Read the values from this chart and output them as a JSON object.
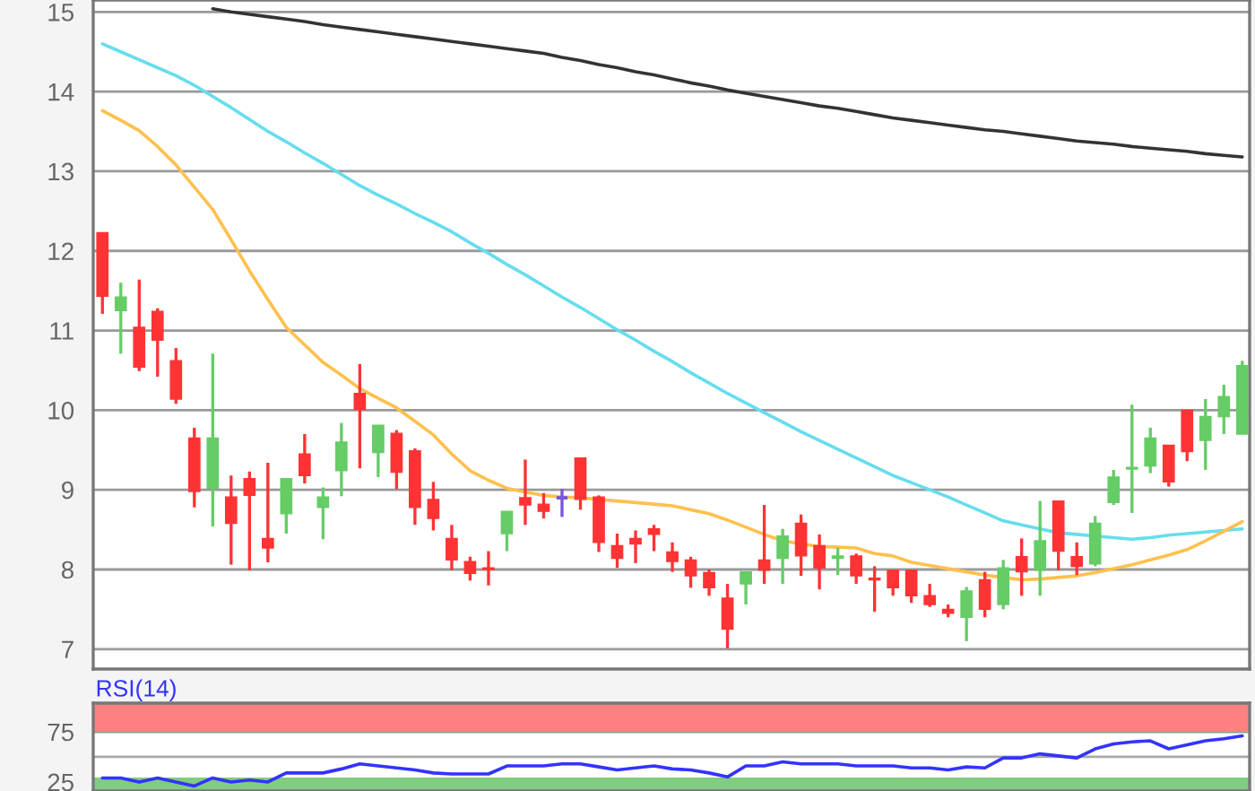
{
  "chart_data": [
    {
      "type": "candlestick",
      "categories": [
        null,
        null,
        null,
        null,
        null,
        null,
        null,
        null,
        null,
        null,
        null,
        null,
        null,
        null,
        null,
        null,
        null,
        null,
        null,
        null,
        null,
        null,
        null,
        null,
        null,
        null,
        null,
        null,
        null,
        null,
        null,
        null,
        null,
        null,
        null,
        null,
        null,
        null,
        null,
        null,
        null,
        null,
        null,
        null,
        null,
        null,
        null,
        null,
        null,
        null,
        null,
        null,
        null,
        null,
        null,
        null,
        null,
        null,
        null,
        null,
        null,
        null,
        null
      ],
      "ohlc": [
        [
          12.23,
          12.23,
          11.21,
          11.43
        ],
        [
          11.25,
          11.6,
          10.71,
          11.42
        ],
        [
          11.04,
          11.64,
          10.49,
          10.54
        ],
        [
          11.24,
          11.28,
          10.42,
          10.88
        ],
        [
          10.62,
          10.78,
          10.08,
          10.14
        ],
        [
          9.65,
          9.78,
          8.78,
          8.98
        ],
        [
          9.02,
          10.71,
          8.54,
          9.65
        ],
        [
          8.91,
          9.18,
          8.06,
          8.58
        ],
        [
          9.14,
          9.23,
          7.99,
          8.93
        ],
        [
          8.39,
          9.34,
          8.09,
          8.27
        ],
        [
          8.7,
          9.14,
          8.45,
          9.14
        ],
        [
          9.45,
          9.7,
          9.08,
          9.18
        ],
        [
          8.78,
          9.03,
          8.38,
          8.91
        ],
        [
          9.24,
          9.84,
          8.92,
          9.6
        ],
        [
          10.21,
          10.58,
          9.27,
          10.01
        ],
        [
          9.47,
          9.81,
          9.16,
          9.81
        ],
        [
          9.71,
          9.75,
          9.01,
          9.22
        ],
        [
          9.49,
          9.52,
          8.56,
          8.78
        ],
        [
          8.88,
          9.1,
          8.49,
          8.64
        ],
        [
          8.39,
          8.56,
          7.99,
          8.12
        ],
        [
          8.1,
          8.16,
          7.86,
          7.95
        ],
        [
          8.02,
          8.23,
          7.8,
          8.0
        ],
        [
          8.45,
          8.73,
          8.23,
          8.73
        ],
        [
          8.9,
          9.38,
          8.56,
          8.81
        ],
        [
          8.82,
          8.96,
          8.64,
          8.73
        ],
        [
          8.9,
          9.01,
          8.66,
          8.9
        ],
        [
          9.4,
          9.4,
          8.75,
          8.88
        ],
        [
          8.91,
          8.93,
          8.22,
          8.34
        ],
        [
          8.3,
          8.45,
          8.02,
          8.14
        ],
        [
          8.39,
          8.49,
          8.08,
          8.32
        ],
        [
          8.51,
          8.56,
          8.23,
          8.44
        ],
        [
          8.22,
          8.34,
          7.97,
          8.1
        ],
        [
          8.12,
          8.16,
          7.77,
          7.92
        ],
        [
          7.96,
          8.0,
          7.67,
          7.77
        ],
        [
          7.64,
          7.82,
          7.01,
          7.25
        ],
        [
          7.82,
          7.97,
          7.56,
          7.97
        ],
        [
          8.12,
          8.81,
          7.82,
          7.99
        ],
        [
          8.14,
          8.51,
          7.82,
          8.42
        ],
        [
          8.58,
          8.69,
          7.92,
          8.17
        ],
        [
          8.3,
          8.44,
          7.75,
          8.02
        ],
        [
          8.14,
          8.27,
          7.93,
          8.17
        ],
        [
          8.17,
          8.2,
          7.82,
          7.92
        ],
        [
          7.89,
          8.04,
          7.47,
          7.87
        ],
        [
          7.99,
          7.99,
          7.67,
          7.77
        ],
        [
          7.99,
          7.99,
          7.58,
          7.67
        ],
        [
          7.67,
          7.82,
          7.53,
          7.56
        ],
        [
          7.5,
          7.56,
          7.4,
          7.45
        ],
        [
          7.4,
          7.78,
          7.1,
          7.73
        ],
        [
          7.87,
          7.97,
          7.4,
          7.5
        ],
        [
          7.56,
          8.12,
          7.5,
          8.02
        ],
        [
          8.16,
          8.39,
          7.67,
          7.97
        ],
        [
          7.99,
          8.86,
          7.67,
          8.36
        ],
        [
          8.86,
          8.86,
          7.99,
          8.23
        ],
        [
          8.16,
          8.34,
          7.93,
          8.04
        ],
        [
          8.07,
          8.67,
          8.04,
          8.58
        ],
        [
          8.84,
          9.25,
          8.81,
          9.16
        ],
        [
          9.26,
          10.07,
          8.71,
          9.28
        ],
        [
          9.3,
          9.78,
          9.21,
          9.65
        ],
        [
          9.56,
          9.56,
          9.04,
          9.1
        ],
        [
          10.0,
          10.0,
          9.36,
          9.48
        ],
        [
          9.62,
          10.14,
          9.25,
          9.92
        ],
        [
          9.92,
          10.32,
          9.7,
          10.17
        ],
        [
          9.7,
          10.62,
          9.7,
          10.56
        ]
      ],
      "colors": [
        "#ff3333",
        "#66cc66",
        "#ff3333",
        "#ff3333",
        "#ff3333",
        "#ff3333",
        "#66cc66",
        "#ff3333",
        "#ff3333",
        "#ff3333",
        "#66cc66",
        "#ff3333",
        "#66cc66",
        "#66cc66",
        "#ff3333",
        "#66cc66",
        "#ff3333",
        "#ff3333",
        "#ff3333",
        "#ff3333",
        "#ff3333",
        "#ff3333",
        "#66cc66",
        "#ff3333",
        "#ff3333",
        "#7755dd",
        "#ff3333",
        "#ff3333",
        "#ff3333",
        "#ff3333",
        "#ff3333",
        "#ff3333",
        "#ff3333",
        "#ff3333",
        "#ff3333",
        "#66cc66",
        "#ff3333",
        "#66cc66",
        "#ff3333",
        "#ff3333",
        "#66cc66",
        "#ff3333",
        "#ff3333",
        "#ff3333",
        "#ff3333",
        "#ff3333",
        "#ff3333",
        "#66cc66",
        "#ff3333",
        "#66cc66",
        "#ff3333",
        "#66cc66",
        "#ff3333",
        "#ff3333",
        "#66cc66",
        "#66cc66",
        "#66cc66",
        "#66cc66",
        "#ff3333",
        "#ff3333",
        "#66cc66",
        "#66cc66",
        "#66cc66"
      ],
      "series": [
        {
          "type": "line",
          "color": "#333333",
          "values": [
            null,
            null,
            null,
            null,
            null,
            null,
            15.04,
            15.0,
            14.97,
            14.94,
            14.91,
            14.88,
            14.84,
            14.81,
            14.78,
            14.75,
            14.72,
            14.69,
            14.66,
            14.63,
            14.6,
            14.57,
            14.54,
            14.51,
            14.48,
            14.43,
            14.39,
            14.34,
            14.3,
            14.25,
            14.21,
            14.16,
            14.11,
            14.07,
            14.02,
            13.98,
            13.94,
            13.9,
            13.86,
            13.82,
            13.79,
            13.75,
            13.71,
            13.67,
            13.64,
            13.61,
            13.58,
            13.55,
            13.52,
            13.5,
            13.47,
            13.44,
            13.41,
            13.38,
            13.36,
            13.34,
            13.31,
            13.29,
            13.27,
            13.25,
            13.22,
            13.2,
            13.18
          ]
        },
        {
          "type": "line",
          "color": "#66ddee",
          "values": [
            14.6,
            14.5,
            14.4,
            14.3,
            14.2,
            14.08,
            13.94,
            13.8,
            13.65,
            13.5,
            13.37,
            13.23,
            13.1,
            12.96,
            12.82,
            12.7,
            12.59,
            12.47,
            12.36,
            12.24,
            12.1,
            11.97,
            11.83,
            11.7,
            11.56,
            11.42,
            11.29,
            11.15,
            11.01,
            10.88,
            10.74,
            10.61,
            10.47,
            10.34,
            10.21,
            10.09,
            9.97,
            9.85,
            9.73,
            9.62,
            9.51,
            9.4,
            9.29,
            9.18,
            9.09,
            9.0,
            8.91,
            8.81,
            8.71,
            8.61,
            8.56,
            8.51,
            8.46,
            8.44,
            8.42,
            8.4,
            8.38,
            8.4,
            8.43,
            8.45,
            8.47,
            8.49,
            8.51
          ]
        },
        {
          "type": "line",
          "color": "#ffc04d",
          "values": [
            13.76,
            13.64,
            13.51,
            13.31,
            13.08,
            12.8,
            12.52,
            12.14,
            11.75,
            11.39,
            11.04,
            10.82,
            10.6,
            10.44,
            10.27,
            10.15,
            10.03,
            9.86,
            9.69,
            9.45,
            9.24,
            9.12,
            9.02,
            8.97,
            8.93,
            8.91,
            8.9,
            8.88,
            8.86,
            8.84,
            8.82,
            8.8,
            8.75,
            8.7,
            8.62,
            8.53,
            8.44,
            8.36,
            8.32,
            8.29,
            8.28,
            8.27,
            8.2,
            8.17,
            8.09,
            8.05,
            8.01,
            7.97,
            7.93,
            7.9,
            7.87,
            7.88,
            7.9,
            7.92,
            7.96,
            8.01,
            8.06,
            8.12,
            8.18,
            8.25,
            8.36,
            8.48,
            8.6
          ]
        }
      ],
      "ylim": [
        6.75,
        15.15
      ],
      "yticks": [
        7,
        8,
        9,
        10,
        11,
        12,
        13,
        14,
        15
      ],
      "grid": "y",
      "tick_labels": "y"
    },
    {
      "type": "line",
      "title": "RSI(14)",
      "categories": [
        null,
        null,
        null,
        null,
        null,
        null,
        null,
        null,
        null,
        null,
        null,
        null,
        null,
        null,
        null,
        null,
        null,
        null,
        null,
        null,
        null,
        null,
        null,
        null,
        null,
        null,
        null,
        null,
        null,
        null,
        null,
        null,
        null,
        null,
        null,
        null,
        null,
        null,
        null,
        null,
        null,
        null,
        null,
        null,
        null,
        null,
        null,
        null,
        null,
        null,
        null,
        null,
        null,
        null,
        null,
        null,
        null,
        null,
        null,
        null,
        null,
        null,
        null
      ],
      "series": [
        {
          "color": "#3333ff",
          "values": [
            29,
            29,
            25,
            29,
            25,
            21,
            29,
            25,
            27,
            25,
            34,
            34,
            34,
            38,
            43,
            41,
            39,
            37,
            34,
            33,
            33,
            33,
            41,
            41,
            41,
            43,
            43,
            40,
            37,
            39,
            41,
            38,
            37,
            34,
            30,
            41,
            41,
            45,
            43,
            43,
            43,
            41,
            41,
            41,
            39,
            39,
            37,
            40,
            39,
            49,
            49,
            53,
            51,
            49,
            58,
            63,
            65,
            66,
            58,
            62,
            66,
            68,
            71
          ]
        }
      ],
      "ylim": [
        16,
        103.6
      ],
      "yticks": [
        25,
        75
      ],
      "grid": "y",
      "tick_labels": "y",
      "bands": [
        {
          "axis": "y",
          "from": 75,
          "to": 103.6,
          "color": "#ff8080"
        },
        {
          "axis": "y",
          "from": 16,
          "to": 29.5,
          "color": "#80cc80"
        }
      ],
      "ref_lines": [
        {
          "axis": "y",
          "value": 50,
          "color": "#aaaaaa"
        }
      ]
    }
  ]
}
